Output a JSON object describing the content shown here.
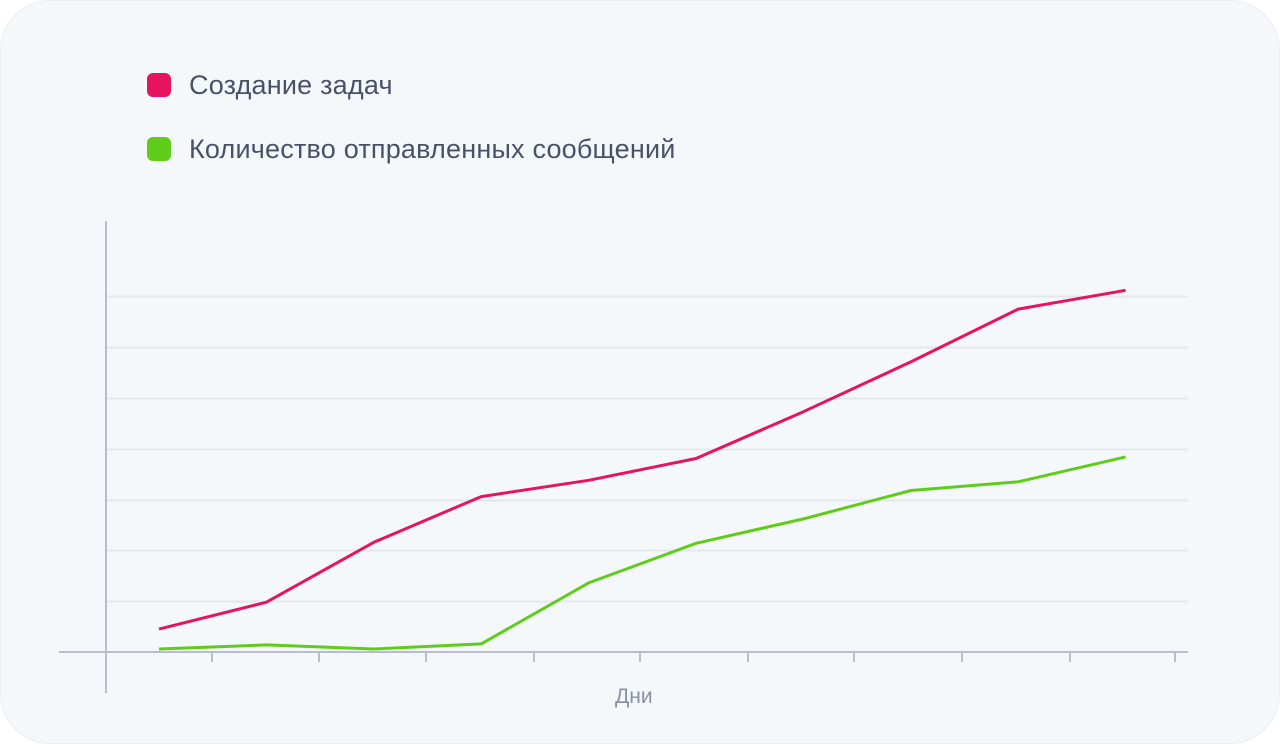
{
  "legend": {
    "items": [
      {
        "label": "Создание задач",
        "color": "#e8135f"
      },
      {
        "label": "Количество отправленных сообщений",
        "color": "#5fcc1a"
      }
    ]
  },
  "axis": {
    "x_label": "Дни",
    "axis_color": "#b8bccb",
    "grid_color": "#e4e8ee"
  },
  "chart_data": {
    "type": "line",
    "title": "",
    "xlabel": "Дни",
    "ylabel": "",
    "x": [
      1,
      2,
      3,
      4,
      5,
      6,
      7,
      8,
      9,
      10
    ],
    "ylim": [
      0,
      7
    ],
    "grid": true,
    "legend_position": "top-left",
    "series": [
      {
        "name": "Создание задач",
        "color": "#e8135f",
        "values": [
          0.45,
          0.98,
          2.16,
          3.06,
          3.38,
          3.81,
          4.73,
          5.71,
          6.75,
          7.12
        ]
      },
      {
        "name": "Количество отправленных сообщений",
        "color": "#5fcc1a",
        "values": [
          0.06,
          0.14,
          0.06,
          0.16,
          1.36,
          2.14,
          2.62,
          3.18,
          3.35,
          3.84
        ]
      }
    ]
  }
}
